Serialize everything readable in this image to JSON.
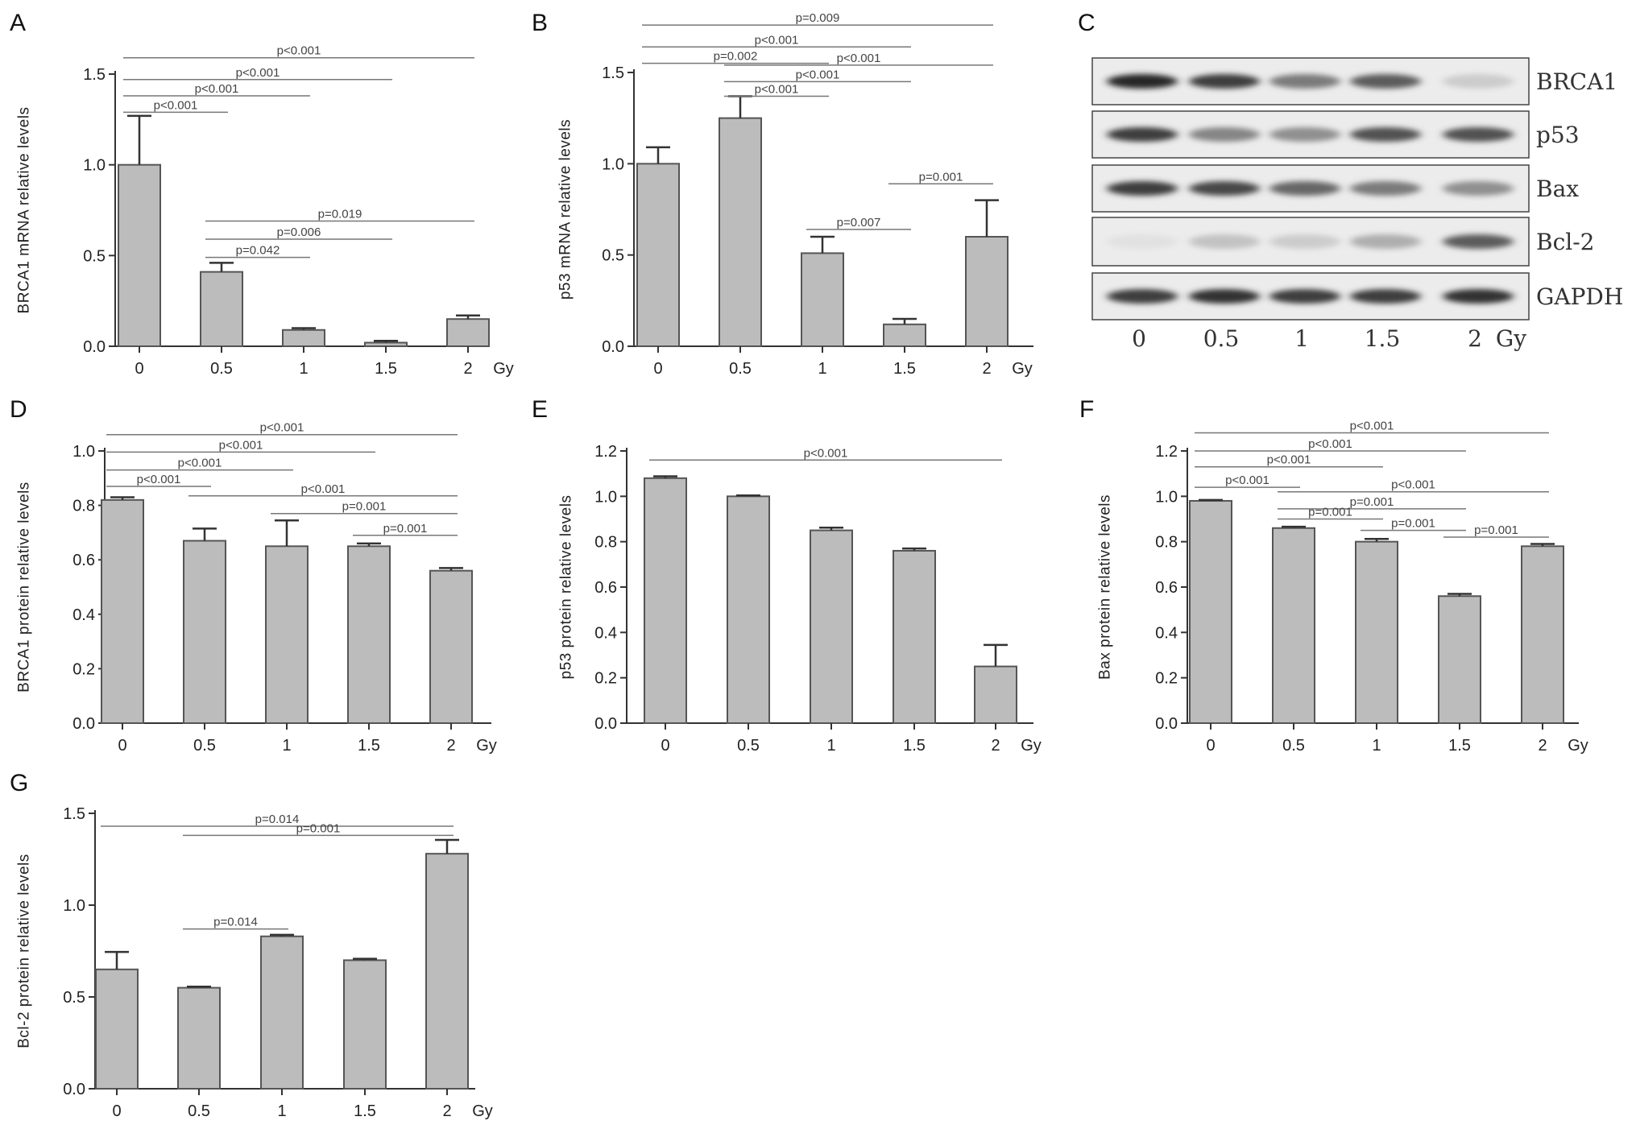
{
  "chart_data": [
    {
      "panel": "A",
      "type": "bar",
      "ylabel": "BRCA1 mRNA relative levels",
      "categories": [
        "0",
        "0.5",
        "1",
        "1.5",
        "2"
      ],
      "unit": "Gy",
      "values": [
        1.0,
        0.41,
        0.09,
        0.02,
        0.15
      ],
      "errors": [
        0.27,
        0.05,
        0.01,
        0.01,
        0.02
      ],
      "ylim": [
        0,
        1.5
      ],
      "yticks": [
        "0.0",
        "0.5",
        "1.0",
        "1.5"
      ],
      "ytick_values": [
        0,
        0.5,
        1.0,
        1.5
      ],
      "comparisons": [
        {
          "from": 0,
          "to": 4,
          "y": 1.59,
          "label": "p<0.001"
        },
        {
          "from": 0,
          "to": 3,
          "y": 1.47,
          "label": "p<0.001"
        },
        {
          "from": 0,
          "to": 2,
          "y": 1.38,
          "label": "p<0.001"
        },
        {
          "from": 0,
          "to": 1,
          "y": 1.29,
          "label": "p<0.001"
        },
        {
          "from": 1,
          "to": 4,
          "y": 0.69,
          "label": "p=0.019"
        },
        {
          "from": 1,
          "to": 3,
          "y": 0.59,
          "label": "p=0.006"
        },
        {
          "from": 1,
          "to": 2,
          "y": 0.49,
          "label": "p=0.042"
        }
      ]
    },
    {
      "panel": "B",
      "type": "bar",
      "ylabel": "p53 mRNA relative levels",
      "categories": [
        "0",
        "0.5",
        "1",
        "1.5",
        "2"
      ],
      "unit": "Gy",
      "values": [
        1.0,
        1.25,
        0.51,
        0.12,
        0.6
      ],
      "errors": [
        0.09,
        0.12,
        0.09,
        0.03,
        0.2
      ],
      "ylim": [
        0,
        1.5
      ],
      "yticks": [
        "0.0",
        "0.5",
        "1.0",
        "1.5"
      ],
      "ytick_values": [
        0,
        0.5,
        1.0,
        1.5
      ],
      "comparisons": [
        {
          "from": 0,
          "to": 4,
          "y": 1.76,
          "label": "p=0.009"
        },
        {
          "from": 0,
          "to": 3,
          "y": 1.64,
          "label": "p<0.001"
        },
        {
          "from": 0,
          "to": 2,
          "y": 1.55,
          "label": "p=0.002"
        },
        {
          "from": 1,
          "to": 4,
          "y": 1.54,
          "label": "p<0.001"
        },
        {
          "from": 1,
          "to": 3,
          "y": 1.45,
          "label": "p<0.001"
        },
        {
          "from": 1,
          "to": 2,
          "y": 1.37,
          "label": "p<0.001"
        },
        {
          "from": 2,
          "to": 3,
          "y": 0.64,
          "label": "p=0.007"
        },
        {
          "from": 3,
          "to": 4,
          "y": 0.89,
          "label": "p=0.001"
        }
      ]
    },
    {
      "panel": "D",
      "type": "bar",
      "ylabel": "BRCA1 protein relative levels",
      "categories": [
        "0",
        "0.5",
        "1",
        "1.5",
        "2"
      ],
      "unit": "Gy",
      "values": [
        0.82,
        0.67,
        0.65,
        0.65,
        0.56
      ],
      "errors": [
        0.01,
        0.045,
        0.095,
        0.01,
        0.01
      ],
      "ylim": [
        0,
        1.0
      ],
      "yticks": [
        "0.0",
        "0.2",
        "0.4",
        "0.6",
        "0.8",
        "1.0"
      ],
      "ytick_values": [
        0,
        0.2,
        0.4,
        0.6,
        0.8,
        1.0
      ],
      "comparisons": [
        {
          "from": 0,
          "to": 4,
          "y": 1.06,
          "label": "p<0.001"
        },
        {
          "from": 0,
          "to": 3,
          "y": 0.996,
          "label": "p<0.001"
        },
        {
          "from": 0,
          "to": 2,
          "y": 0.93,
          "label": "p<0.001"
        },
        {
          "from": 0,
          "to": 1,
          "y": 0.87,
          "label": "p<0.001"
        },
        {
          "from": 1,
          "to": 4,
          "y": 0.835,
          "label": "p<0.001"
        },
        {
          "from": 2,
          "to": 4,
          "y": 0.77,
          "label": "p=0.001"
        },
        {
          "from": 3,
          "to": 4,
          "y": 0.69,
          "label": "p=0.001"
        }
      ]
    },
    {
      "panel": "E",
      "type": "bar",
      "ylabel": "p53 protein relative levels",
      "categories": [
        "0",
        "0.5",
        "1",
        "1.5",
        "2"
      ],
      "unit": "Gy",
      "values": [
        1.08,
        1.0,
        0.85,
        0.76,
        0.25
      ],
      "errors": [
        0.008,
        0.004,
        0.012,
        0.01,
        0.095
      ],
      "ylim": [
        0,
        1.2
      ],
      "yticks": [
        "0.0",
        "0.2",
        "0.4",
        "0.6",
        "0.8",
        "1.0",
        "1.2"
      ],
      "ytick_values": [
        0,
        0.2,
        0.4,
        0.6,
        0.8,
        1.0,
        1.2
      ],
      "comparisons": [
        {
          "from": 0,
          "to": 4,
          "y": 1.16,
          "label": "p<0.001"
        }
      ]
    },
    {
      "panel": "F",
      "type": "bar",
      "ylabel": "Bax protein relative levels",
      "categories": [
        "0",
        "0.5",
        "1",
        "1.5",
        "2"
      ],
      "unit": "Gy",
      "values": [
        0.98,
        0.86,
        0.8,
        0.56,
        0.78
      ],
      "errors": [
        0.004,
        0.006,
        0.012,
        0.01,
        0.01
      ],
      "ylim": [
        0,
        1.2
      ],
      "yticks": [
        "0.0",
        "0.2",
        "0.4",
        "0.6",
        "0.8",
        "1.0",
        "1.2"
      ],
      "ytick_values": [
        0,
        0.2,
        0.4,
        0.6,
        0.8,
        1.0,
        1.2
      ],
      "comparisons": [
        {
          "from": 0,
          "to": 4,
          "y": 1.28,
          "label": "p<0.001"
        },
        {
          "from": 0,
          "to": 3,
          "y": 1.2,
          "label": "p<0.001"
        },
        {
          "from": 0,
          "to": 2,
          "y": 1.13,
          "label": "p<0.001"
        },
        {
          "from": 0,
          "to": 1,
          "y": 1.04,
          "label": "p<0.001"
        },
        {
          "from": 1,
          "to": 4,
          "y": 1.02,
          "label": "p<0.001"
        },
        {
          "from": 1,
          "to": 3,
          "y": 0.945,
          "label": "p=0.001"
        },
        {
          "from": 1,
          "to": 2,
          "y": 0.9,
          "label": "p=0.001"
        },
        {
          "from": 2,
          "to": 3,
          "y": 0.85,
          "label": "p=0.001"
        },
        {
          "from": 3,
          "to": 4,
          "y": 0.82,
          "label": "p=0.001"
        }
      ]
    },
    {
      "panel": "G",
      "type": "bar",
      "ylabel": "Bcl-2 protein relative levels",
      "categories": [
        "0",
        "0.5",
        "1",
        "1.5",
        "2"
      ],
      "unit": "Gy",
      "values": [
        0.65,
        0.55,
        0.83,
        0.7,
        1.28
      ],
      "errors": [
        0.095,
        0.006,
        0.008,
        0.008,
        0.075
      ],
      "ylim": [
        0,
        1.5
      ],
      "yticks": [
        "0.0",
        "0.5",
        "1.0",
        "1.5"
      ],
      "ytick_values": [
        0,
        0.5,
        1.0,
        1.5
      ],
      "comparisons": [
        {
          "from": 0,
          "to": 4,
          "y": 1.43,
          "label": "p=0.014"
        },
        {
          "from": 1,
          "to": 4,
          "y": 1.38,
          "label": "p=0.001"
        },
        {
          "from": 1,
          "to": 2,
          "y": 0.87,
          "label": "p=0.014"
        }
      ]
    }
  ],
  "western_blot": {
    "panel": "C",
    "rows": [
      "BRCA1",
      "p53",
      "Bax",
      "Bcl-2",
      "GAPDH"
    ],
    "lanes": [
      "0",
      "0.5",
      "1",
      "1.5",
      "2"
    ],
    "unit": "Gy",
    "band_intensity": [
      [
        0.95,
        0.85,
        0.55,
        0.7,
        0.15
      ],
      [
        0.85,
        0.5,
        0.45,
        0.75,
        0.75
      ],
      [
        0.85,
        0.8,
        0.65,
        0.55,
        0.45
      ],
      [
        0.05,
        0.2,
        0.15,
        0.3,
        0.7
      ],
      [
        0.85,
        0.9,
        0.85,
        0.85,
        0.9
      ]
    ]
  }
}
